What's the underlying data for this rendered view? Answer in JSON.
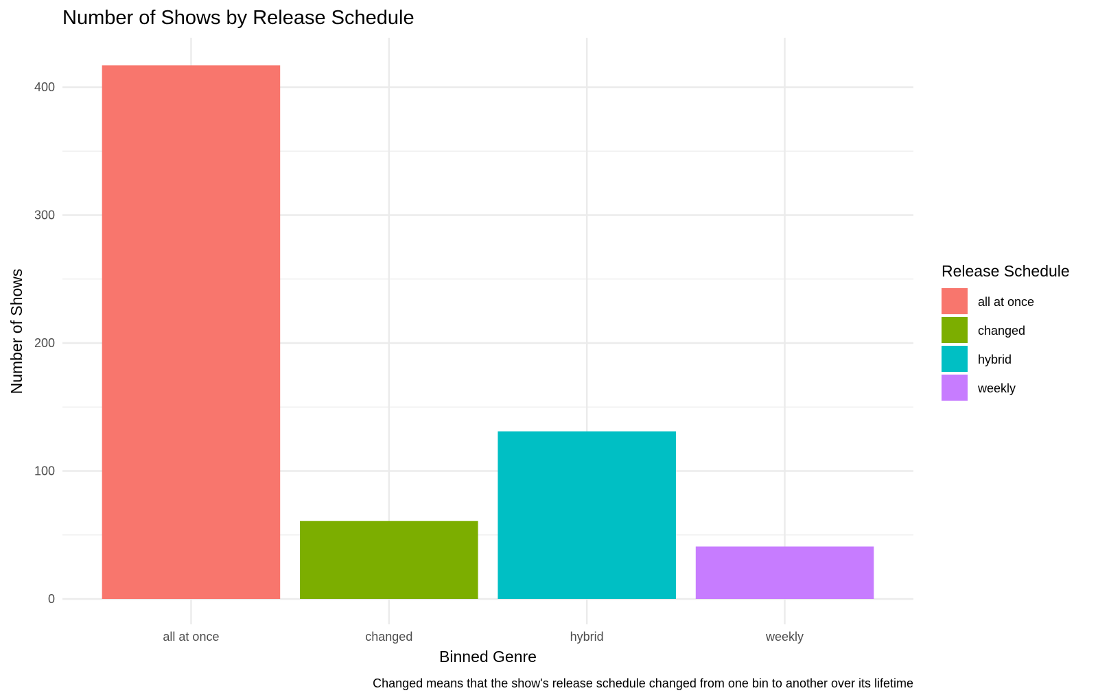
{
  "chart_data": {
    "type": "bar",
    "title": "Number of Shows by Release Schedule",
    "xlabel": "Binned Genre",
    "ylabel": "Number of Shows",
    "caption": "Changed means that the show's release schedule changed from one bin to another over its lifetime",
    "categories": [
      "all at once",
      "changed",
      "hybrid",
      "weekly"
    ],
    "values": [
      417,
      61,
      131,
      41
    ],
    "colors": [
      "#F8766D",
      "#7CAE00",
      "#00BFC4",
      "#C77CFF"
    ],
    "ylim": [
      0,
      437
    ],
    "yticks": [
      0,
      100,
      200,
      300,
      400
    ],
    "grid": true,
    "legend": {
      "title": "Release Schedule",
      "placement": "right",
      "entries": [
        "all at once",
        "changed",
        "hybrid",
        "weekly"
      ]
    }
  }
}
